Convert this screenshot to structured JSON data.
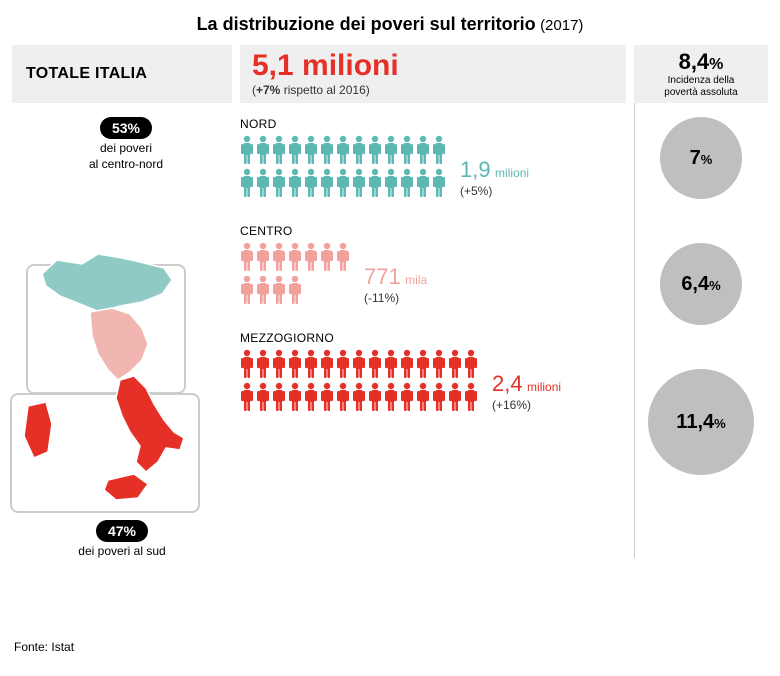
{
  "title": {
    "main": "La distribuzione dei poveri sul territorio",
    "year": "(2017)"
  },
  "totale_label": "TOTALE ITALIA",
  "headline": {
    "value": "5,1 milioni",
    "delta_bold": "+7%",
    "delta_rest": " rispetto al 2016)",
    "delta_open": "("
  },
  "incidence_header": {
    "value": "8,4",
    "pct": "%",
    "label_l1": "Incidenza della",
    "label_l2": "povertà assoluta"
  },
  "map": {
    "top_pill": "53%",
    "top_sub_l1": "dei poveri",
    "top_sub_l2": "al centro-nord",
    "bot_pill": "47%",
    "bot_sub": "dei poveri al sud",
    "colors": {
      "nord": "#8fcac4",
      "centro": "#f2b6b1",
      "sud": "#e53027",
      "stroke": "#ffffff"
    }
  },
  "regions": [
    {
      "key": "nord",
      "label": "NORD",
      "rows": [
        13,
        13
      ],
      "color": "#5cb8b2",
      "value": "1,9",
      "unit": "milioni",
      "delta": "(+5%)"
    },
    {
      "key": "centro",
      "label": "CENTRO",
      "rows": [
        7,
        4
      ],
      "color": "#f2a29d",
      "value": "771",
      "unit": "mila",
      "delta": "(-11%)"
    },
    {
      "key": "mezzo",
      "label": "MEZZOGIORNO",
      "rows": [
        15,
        15
      ],
      "color": "#e53027",
      "value": "2,4",
      "unit": "milioni",
      "delta": "(+16%)"
    }
  ],
  "circles": [
    {
      "value": "7",
      "pct": "%",
      "size": "s"
    },
    {
      "value": "6,4",
      "pct": "%",
      "size": "s"
    },
    {
      "value": "11,4",
      "pct": "%",
      "size": "l"
    }
  ],
  "source": "Fonte: Istat",
  "style": {
    "slab_bg": "#efefef",
    "circle_bg": "#bfbfbf",
    "frame_border": "#cccccc",
    "title_fontsize": 18
  }
}
